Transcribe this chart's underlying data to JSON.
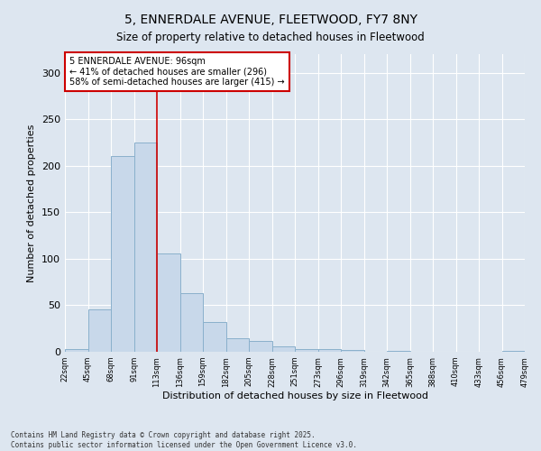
{
  "title1": "5, ENNERDALE AVENUE, FLEETWOOD, FY7 8NY",
  "title2": "Size of property relative to detached houses in Fleetwood",
  "xlabel": "Distribution of detached houses by size in Fleetwood",
  "ylabel": "Number of detached properties",
  "bar_values": [
    3,
    46,
    210,
    225,
    106,
    63,
    32,
    15,
    12,
    6,
    3,
    3,
    2,
    0,
    1,
    0,
    0,
    0,
    0,
    1
  ],
  "bin_labels": [
    "22sqm",
    "45sqm",
    "68sqm",
    "91sqm",
    "113sqm",
    "136sqm",
    "159sqm",
    "182sqm",
    "205sqm",
    "228sqm",
    "251sqm",
    "273sqm",
    "296sqm",
    "319sqm",
    "342sqm",
    "365sqm",
    "388sqm",
    "410sqm",
    "433sqm",
    "456sqm",
    "479sqm"
  ],
  "bar_color": "#c8d8ea",
  "bar_edge_color": "#8ab0cc",
  "background_color": "#dde6f0",
  "grid_color": "#ffffff",
  "vline_x_index": 3,
  "vline_color": "#cc0000",
  "annotation_text": "5 ENNERDALE AVENUE: 96sqm\n← 41% of detached houses are smaller (296)\n58% of semi-detached houses are larger (415) →",
  "annotation_box_color": "#ffffff",
  "annotation_box_edge": "#cc0000",
  "footer": "Contains HM Land Registry data © Crown copyright and database right 2025.\nContains public sector information licensed under the Open Government Licence v3.0.",
  "ylim": [
    0,
    320
  ],
  "yticks": [
    0,
    50,
    100,
    150,
    200,
    250,
    300
  ]
}
